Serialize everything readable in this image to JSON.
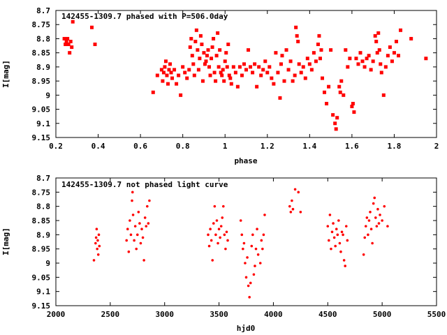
{
  "chart_data": [
    {
      "type": "scatter",
      "title": "142455-1309.7 phased with P=506.0day",
      "xlabel": "phase",
      "ylabel": "I[mag]",
      "xlim": [
        0.2,
        2
      ],
      "ylim": [
        8.7,
        9.15
      ],
      "y_inverted": true,
      "xticks": [
        0.2,
        0.4,
        0.6,
        0.8,
        1,
        1.2,
        1.4,
        1.6,
        1.8,
        2
      ],
      "xtick_labels": [
        "0.2",
        "0.4",
        "0.6",
        "0.8",
        "1",
        "1.2",
        "1.4",
        "1.6",
        "1.8",
        "2"
      ],
      "yticks": [
        8.7,
        8.75,
        8.8,
        8.85,
        8.9,
        8.95,
        9,
        9.05,
        9.1,
        9.15
      ],
      "ytick_labels": [
        "8.7",
        "8.75",
        "8.8",
        "8.85",
        "8.9",
        "8.95",
        "9",
        "9.05",
        "9.1",
        "9.15"
      ],
      "grid": false,
      "marker_color": "#ff0000",
      "points": [
        [
          0.24,
          8.8
        ],
        [
          0.245,
          8.82
        ],
        [
          0.25,
          8.81
        ],
        [
          0.255,
          8.8
        ],
        [
          0.26,
          8.82
        ],
        [
          0.265,
          8.85
        ],
        [
          0.27,
          8.81
        ],
        [
          0.275,
          8.83
        ],
        [
          0.28,
          8.74
        ],
        [
          0.37,
          8.76
        ],
        [
          0.385,
          8.82
        ],
        [
          0.66,
          8.99
        ],
        [
          0.68,
          8.93
        ],
        [
          0.7,
          8.91
        ],
        [
          0.705,
          8.95
        ],
        [
          0.71,
          8.92
        ],
        [
          0.715,
          8.9
        ],
        [
          0.72,
          8.88
        ],
        [
          0.725,
          8.93
        ],
        [
          0.73,
          8.96
        ],
        [
          0.735,
          8.91
        ],
        [
          0.74,
          8.89
        ],
        [
          0.745,
          8.92
        ],
        [
          0.75,
          8.94
        ],
        [
          0.76,
          8.91
        ],
        [
          0.77,
          8.96
        ],
        [
          0.78,
          8.93
        ],
        [
          0.79,
          9.0
        ],
        [
          0.8,
          8.9
        ],
        [
          0.81,
          8.92
        ],
        [
          0.82,
          8.94
        ],
        [
          0.83,
          8.91
        ],
        [
          0.835,
          8.83
        ],
        [
          0.84,
          8.8
        ],
        [
          0.845,
          8.86
        ],
        [
          0.85,
          8.89
        ],
        [
          0.855,
          8.93
        ],
        [
          0.86,
          8.81
        ],
        [
          0.865,
          8.77
        ],
        [
          0.87,
          8.84
        ],
        [
          0.875,
          8.91
        ],
        [
          0.88,
          8.87
        ],
        [
          0.885,
          8.79
        ],
        [
          0.89,
          8.82
        ],
        [
          0.895,
          8.95
        ],
        [
          0.9,
          8.85
        ],
        [
          0.905,
          8.89
        ],
        [
          0.91,
          8.88
        ],
        [
          0.915,
          8.86
        ],
        [
          0.92,
          8.84
        ],
        [
          0.925,
          8.9
        ],
        [
          0.93,
          8.93
        ],
        [
          0.935,
          8.87
        ],
        [
          0.94,
          8.83
        ],
        [
          0.945,
          8.8
        ],
        [
          0.95,
          8.92
        ],
        [
          0.955,
          8.95
        ],
        [
          0.96,
          8.86
        ],
        [
          0.965,
          8.78
        ],
        [
          0.97,
          8.9
        ],
        [
          0.975,
          8.84
        ],
        [
          0.98,
          8.92
        ],
        [
          0.985,
          8.93
        ],
        [
          0.99,
          8.91
        ],
        [
          0.995,
          8.95
        ],
        [
          1.0,
          8.88
        ],
        [
          1.005,
          8.85
        ],
        [
          1.01,
          8.9
        ],
        [
          1.015,
          8.82
        ],
        [
          1.02,
          8.93
        ],
        [
          1.025,
          8.94
        ],
        [
          1.03,
          8.96
        ],
        [
          1.04,
          8.9
        ],
        [
          1.05,
          8.92
        ],
        [
          1.06,
          8.97
        ],
        [
          1.07,
          8.9
        ],
        [
          1.08,
          8.93
        ],
        [
          1.09,
          8.89
        ],
        [
          1.1,
          8.91
        ],
        [
          1.11,
          8.84
        ],
        [
          1.12,
          8.9
        ],
        [
          1.13,
          8.92
        ],
        [
          1.14,
          8.89
        ],
        [
          1.15,
          8.97
        ],
        [
          1.16,
          8.9
        ],
        [
          1.17,
          8.93
        ],
        [
          1.18,
          8.91
        ],
        [
          1.19,
          8.88
        ],
        [
          1.2,
          8.92
        ],
        [
          1.21,
          8.9
        ],
        [
          1.22,
          8.94
        ],
        [
          1.23,
          8.96
        ],
        [
          1.24,
          8.85
        ],
        [
          1.25,
          8.92
        ],
        [
          1.26,
          9.01
        ],
        [
          1.265,
          8.89
        ],
        [
          1.27,
          8.86
        ],
        [
          1.28,
          8.95
        ],
        [
          1.29,
          8.84
        ],
        [
          1.3,
          8.91
        ],
        [
          1.31,
          8.88
        ],
        [
          1.32,
          8.95
        ],
        [
          1.33,
          8.93
        ],
        [
          1.335,
          8.76
        ],
        [
          1.34,
          8.79
        ],
        [
          1.345,
          8.81
        ],
        [
          1.35,
          8.89
        ],
        [
          1.36,
          8.92
        ],
        [
          1.37,
          8.9
        ],
        [
          1.38,
          8.94
        ],
        [
          1.39,
          8.87
        ],
        [
          1.4,
          8.89
        ],
        [
          1.41,
          8.91
        ],
        [
          1.42,
          8.85
        ],
        [
          1.43,
          8.88
        ],
        [
          1.44,
          8.82
        ],
        [
          1.445,
          8.79
        ],
        [
          1.45,
          8.87
        ],
        [
          1.455,
          8.84
        ],
        [
          1.46,
          8.94
        ],
        [
          1.47,
          8.99
        ],
        [
          1.48,
          9.03
        ],
        [
          1.49,
          8.97
        ],
        [
          1.5,
          8.84
        ],
        [
          1.51,
          9.07
        ],
        [
          1.52,
          9.1
        ],
        [
          1.525,
          9.12
        ],
        [
          1.53,
          9.08
        ],
        [
          1.54,
          8.97
        ],
        [
          1.545,
          8.99
        ],
        [
          1.55,
          8.95
        ],
        [
          1.56,
          9.0
        ],
        [
          1.57,
          8.84
        ],
        [
          1.58,
          8.9
        ],
        [
          1.59,
          8.87
        ],
        [
          1.6,
          9.04
        ],
        [
          1.605,
          9.03
        ],
        [
          1.61,
          9.06
        ],
        [
          1.62,
          8.87
        ],
        [
          1.63,
          8.89
        ],
        [
          1.64,
          8.85
        ],
        [
          1.65,
          8.88
        ],
        [
          1.66,
          8.9
        ],
        [
          1.67,
          8.87
        ],
        [
          1.68,
          8.86
        ],
        [
          1.69,
          8.91
        ],
        [
          1.7,
          8.88
        ],
        [
          1.71,
          8.79
        ],
        [
          1.715,
          8.81
        ],
        [
          1.72,
          8.85
        ],
        [
          1.725,
          8.78
        ],
        [
          1.73,
          8.84
        ],
        [
          1.735,
          8.89
        ],
        [
          1.74,
          8.92
        ],
        [
          1.75,
          9.0
        ],
        [
          1.76,
          8.9
        ],
        [
          1.77,
          8.86
        ],
        [
          1.78,
          8.83
        ],
        [
          1.79,
          8.88
        ],
        [
          1.8,
          8.85
        ],
        [
          1.81,
          8.81
        ],
        [
          1.82,
          8.86
        ],
        [
          1.83,
          8.77
        ],
        [
          1.88,
          8.8
        ],
        [
          1.95,
          8.87
        ]
      ]
    },
    {
      "type": "scatter",
      "title": "142455-1309.7 not phased light curve",
      "xlabel": "hjd0",
      "ylabel": "I[mag]",
      "xlim": [
        2000,
        5500
      ],
      "ylim": [
        8.7,
        9.15
      ],
      "y_inverted": true,
      "xticks": [
        2000,
        2500,
        3000,
        3500,
        4000,
        4500,
        5000,
        5500
      ],
      "xtick_labels": [
        "2000",
        "2500",
        "3000",
        "3500",
        "4000",
        "4500",
        "5000",
        "5500"
      ],
      "yticks": [
        8.7,
        8.75,
        8.8,
        8.85,
        8.9,
        8.95,
        9,
        9.05,
        9.1,
        9.15
      ],
      "ytick_labels": [
        "8.7",
        "8.75",
        "8.8",
        "8.85",
        "8.9",
        "8.95",
        "9",
        "9.05",
        "9.1",
        "9.15"
      ],
      "grid": false,
      "marker_color": "#ff0000",
      "points": [
        [
          2350,
          8.99
        ],
        [
          2365,
          8.93
        ],
        [
          2370,
          8.91
        ],
        [
          2375,
          8.88
        ],
        [
          2380,
          8.95
        ],
        [
          2385,
          8.92
        ],
        [
          2390,
          8.97
        ],
        [
          2395,
          8.9
        ],
        [
          2400,
          8.94
        ],
        [
          2650,
          8.92
        ],
        [
          2660,
          8.88
        ],
        [
          2670,
          8.96
        ],
        [
          2680,
          8.85
        ],
        [
          2690,
          8.9
        ],
        [
          2700,
          8.78
        ],
        [
          2705,
          8.75
        ],
        [
          2710,
          8.83
        ],
        [
          2720,
          8.92
        ],
        [
          2730,
          8.87
        ],
        [
          2740,
          8.95
        ],
        [
          2750,
          8.9
        ],
        [
          2760,
          8.82
        ],
        [
          2770,
          8.86
        ],
        [
          2780,
          8.93
        ],
        [
          2790,
          8.88
        ],
        [
          2800,
          8.91
        ],
        [
          2810,
          8.99
        ],
        [
          2820,
          8.84
        ],
        [
          2830,
          8.87
        ],
        [
          2840,
          8.8
        ],
        [
          2850,
          8.86
        ],
        [
          2860,
          8.78
        ],
        [
          3400,
          8.9
        ],
        [
          3410,
          8.94
        ],
        [
          3420,
          8.88
        ],
        [
          3430,
          8.92
        ],
        [
          3440,
          8.99
        ],
        [
          3450,
          8.86
        ],
        [
          3460,
          8.8
        ],
        [
          3470,
          8.9
        ],
        [
          3480,
          8.85
        ],
        [
          3490,
          8.93
        ],
        [
          3500,
          8.88
        ],
        [
          3510,
          8.91
        ],
        [
          3520,
          8.87
        ],
        [
          3530,
          8.84
        ],
        [
          3540,
          8.8
        ],
        [
          3550,
          8.9
        ],
        [
          3560,
          8.95
        ],
        [
          3570,
          8.89
        ],
        [
          3580,
          8.92
        ],
        [
          3700,
          8.85
        ],
        [
          3710,
          8.9
        ],
        [
          3720,
          8.95
        ],
        [
          3730,
          8.93
        ],
        [
          3740,
          9.0
        ],
        [
          3750,
          9.05
        ],
        [
          3760,
          8.98
        ],
        [
          3770,
          9.08
        ],
        [
          3780,
          9.12
        ],
        [
          3790,
          9.07
        ],
        [
          3800,
          8.94
        ],
        [
          3810,
          8.9
        ],
        [
          3820,
          9.04
        ],
        [
          3830,
          9.01
        ],
        [
          3840,
          8.95
        ],
        [
          3850,
          8.88
        ],
        [
          3860,
          8.97
        ],
        [
          3880,
          9.0
        ],
        [
          3890,
          8.92
        ],
        [
          3900,
          8.95
        ],
        [
          3910,
          8.9
        ],
        [
          3920,
          8.83
        ],
        [
          4150,
          8.8
        ],
        [
          4160,
          8.82
        ],
        [
          4170,
          8.78
        ],
        [
          4180,
          8.81
        ],
        [
          4200,
          8.74
        ],
        [
          4230,
          8.75
        ],
        [
          4250,
          8.82
        ],
        [
          4500,
          8.87
        ],
        [
          4510,
          8.92
        ],
        [
          4520,
          8.83
        ],
        [
          4530,
          8.95
        ],
        [
          4540,
          8.89
        ],
        [
          4550,
          8.86
        ],
        [
          4560,
          8.91
        ],
        [
          4570,
          8.94
        ],
        [
          4580,
          8.88
        ],
        [
          4590,
          8.9
        ],
        [
          4600,
          8.85
        ],
        [
          4610,
          8.93
        ],
        [
          4620,
          8.96
        ],
        [
          4630,
          8.89
        ],
        [
          4640,
          8.9
        ],
        [
          4650,
          8.99
        ],
        [
          4660,
          9.01
        ],
        [
          4670,
          8.87
        ],
        [
          4680,
          8.92
        ],
        [
          4830,
          8.97
        ],
        [
          4840,
          8.91
        ],
        [
          4850,
          8.87
        ],
        [
          4860,
          8.84
        ],
        [
          4870,
          8.9
        ],
        [
          4880,
          8.85
        ],
        [
          4890,
          8.82
        ],
        [
          4900,
          8.88
        ],
        [
          4910,
          8.93
        ],
        [
          4920,
          8.79
        ],
        [
          4930,
          8.77
        ],
        [
          4940,
          8.84
        ],
        [
          4950,
          8.87
        ],
        [
          4960,
          8.81
        ],
        [
          4970,
          8.86
        ],
        [
          4980,
          8.83
        ],
        [
          5000,
          8.85
        ],
        [
          5020,
          8.8
        ],
        [
          5050,
          8.87
        ]
      ]
    }
  ]
}
